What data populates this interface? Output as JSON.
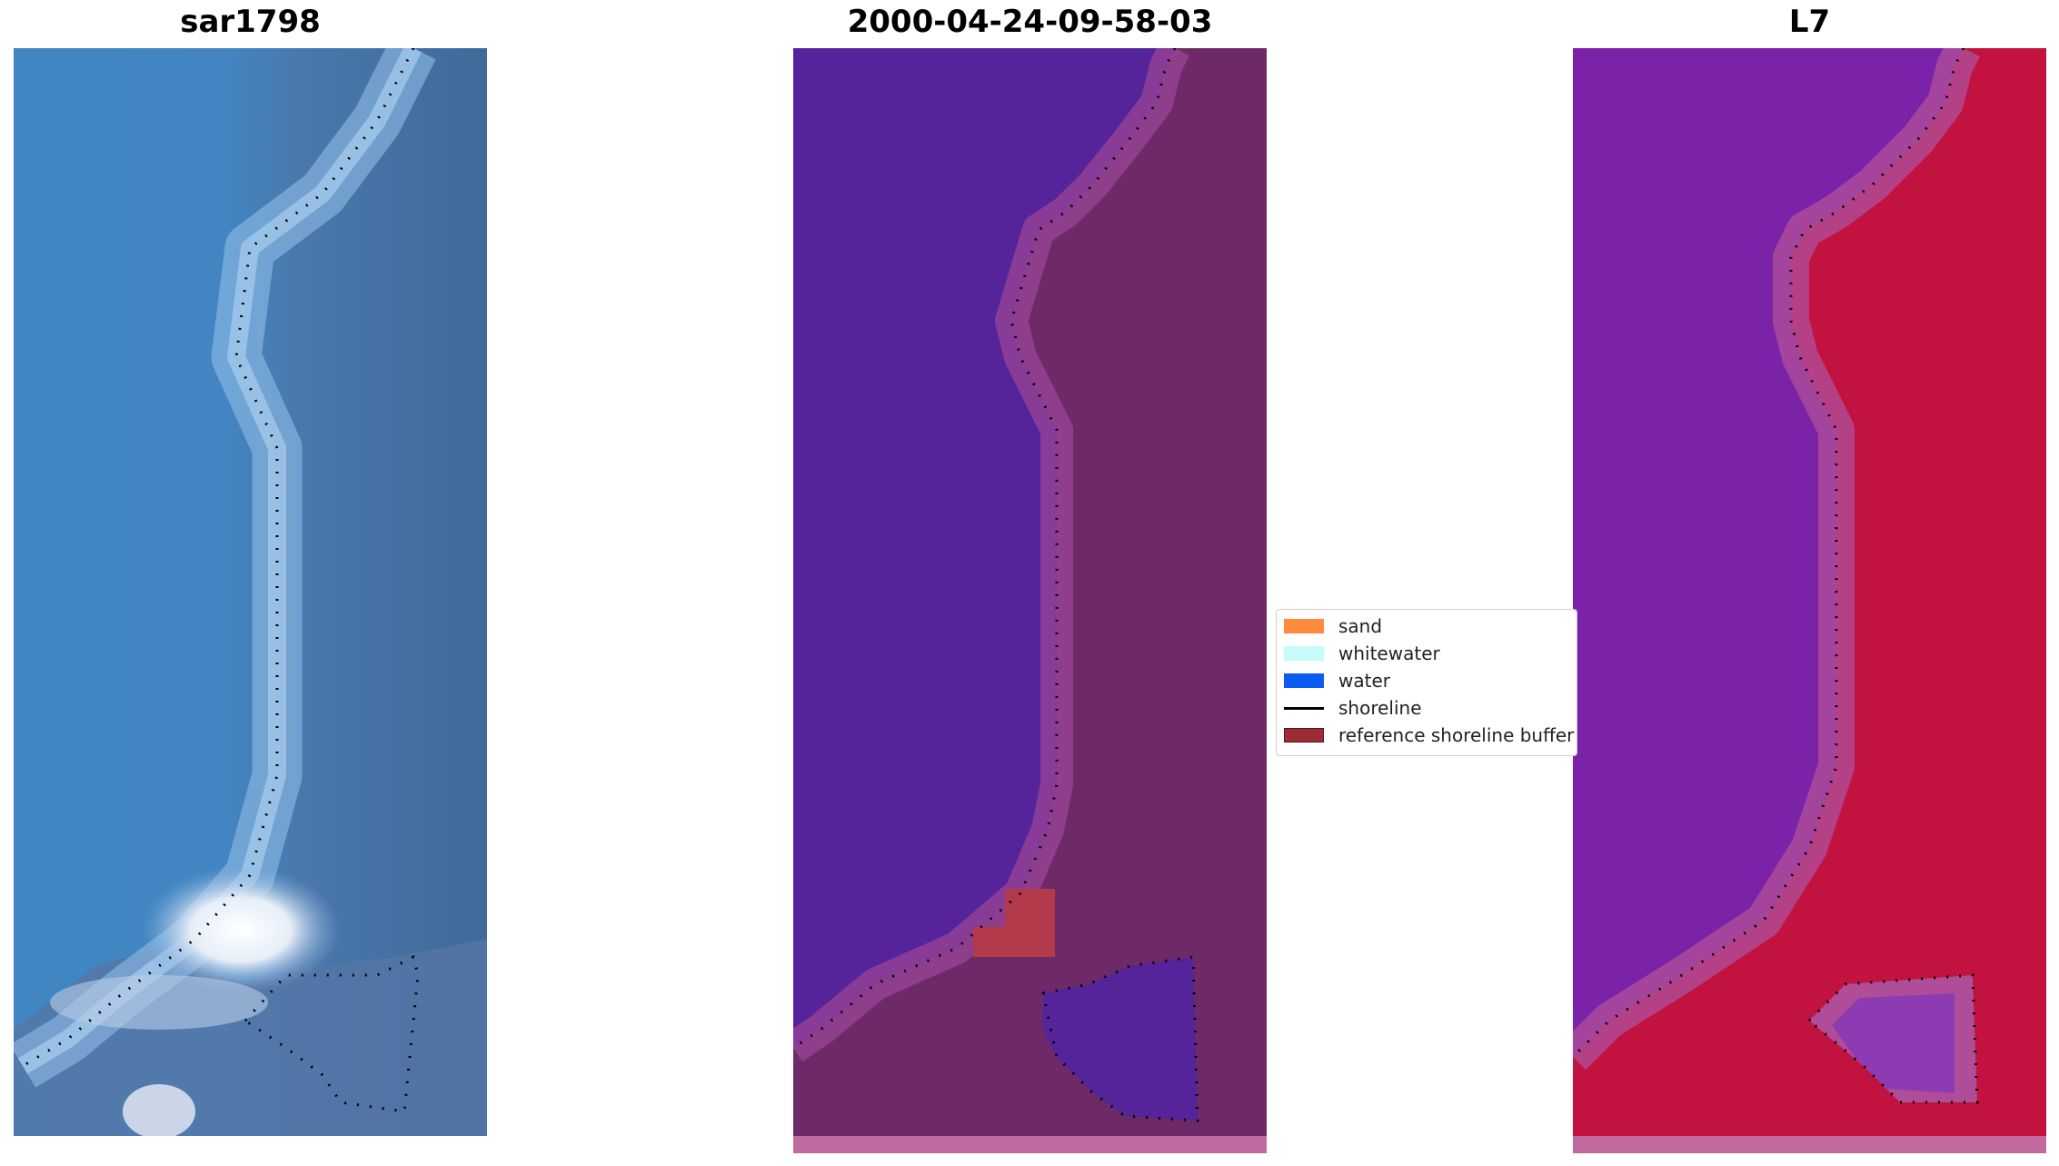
{
  "panels": [
    {
      "title": "sar1798"
    },
    {
      "title": "2000-04-24-09-58-03"
    },
    {
      "title": "L7"
    }
  ],
  "legend": {
    "items": [
      {
        "label": "sand",
        "color": "#ff8a3d",
        "kind": "patch"
      },
      {
        "label": "whitewater",
        "color": "#c8fcfa",
        "kind": "patch"
      },
      {
        "label": "water",
        "color": "#0b5cf0",
        "kind": "patch"
      },
      {
        "label": "shoreline",
        "color": "#000000",
        "kind": "line"
      },
      {
        "label": "reference shoreline buffer",
        "color": "#9b2b35",
        "kind": "patch"
      }
    ]
  },
  "colors": {
    "rgb_water": "#3f86c3",
    "rgb_land": "#3f6a9a",
    "class_water": "#55239a",
    "class_land": "#6e2a68",
    "buffer": "#c06a9f",
    "sand_overlap": "#b23a4a",
    "ndwi_water": "#7a22a8",
    "ndwi_land": "#c2123f"
  }
}
